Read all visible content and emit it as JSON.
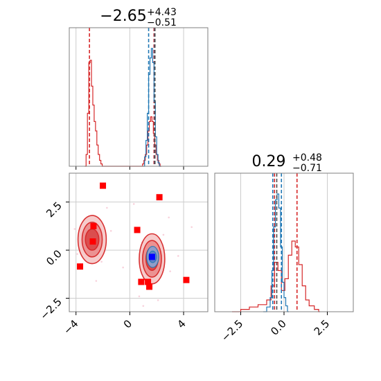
{
  "chart_data": [
    {
      "type": "histogram",
      "panel": "top-left",
      "title": {
        "value": "−2.65",
        "sup": "+4.43",
        "sub": "−0.51"
      },
      "xlim": [
        -4.5,
        5.8
      ],
      "x_ticks": [
        -4,
        0,
        4
      ],
      "grid": true,
      "series": [
        {
          "color": "#d62728",
          "bins": [
            [
              -3.35,
              0.0
            ],
            [
              -3.25,
              0.1
            ],
            [
              -3.15,
              0.45
            ],
            [
              -3.05,
              0.88
            ],
            [
              -2.95,
              0.9
            ],
            [
              -2.85,
              0.68
            ],
            [
              -2.75,
              0.52
            ],
            [
              -2.65,
              0.38
            ],
            [
              -2.55,
              0.3
            ],
            [
              -2.45,
              0.18
            ],
            [
              -2.35,
              0.1
            ],
            [
              -2.25,
              0.05
            ],
            [
              -2.15,
              0.02
            ],
            [
              -2.05,
              0.0
            ],
            [
              0.85,
              0.0
            ],
            [
              0.95,
              0.02
            ],
            [
              1.05,
              0.05
            ],
            [
              1.15,
              0.1
            ],
            [
              1.25,
              0.18
            ],
            [
              1.35,
              0.3
            ],
            [
              1.45,
              0.38
            ],
            [
              1.55,
              0.42
            ],
            [
              1.65,
              0.38
            ],
            [
              1.75,
              0.28
            ],
            [
              1.85,
              0.18
            ],
            [
              1.95,
              0.1
            ],
            [
              2.05,
              0.05
            ],
            [
              2.15,
              0.02
            ],
            [
              2.25,
              0.0
            ]
          ],
          "quantiles": [
            -3.0,
            1.8
          ]
        },
        {
          "color": "#1f77b4",
          "bins": [
            [
              1.0,
              0.0
            ],
            [
              1.1,
              0.08
            ],
            [
              1.2,
              0.22
            ],
            [
              1.3,
              0.45
            ],
            [
              1.4,
              0.78
            ],
            [
              1.5,
              0.92
            ],
            [
              1.6,
              1.0
            ],
            [
              1.7,
              0.88
            ],
            [
              1.8,
              0.55
            ],
            [
              1.9,
              0.25
            ],
            [
              2.0,
              0.1
            ],
            [
              2.1,
              0.03
            ],
            [
              2.2,
              0.0
            ]
          ],
          "quantiles": [
            1.4,
            1.85
          ]
        }
      ],
      "black_lines": [
        1.87
      ]
    },
    {
      "type": "contour-scatter",
      "panel": "bottom-left",
      "xlim": [
        -4.5,
        5.8
      ],
      "ylim": [
        -3.2,
        4.0
      ],
      "x_ticks": [
        -4,
        0,
        4
      ],
      "y_ticks": [
        -2.5,
        0.0,
        2.5
      ],
      "y_tick_labels": [
        "−2.5",
        "0.0",
        "2.5"
      ],
      "x_tick_labels": [
        "−4",
        "0",
        "4"
      ],
      "grid": true,
      "red_contours": [
        {
          "cx": -2.8,
          "cy": 0.55,
          "rx": [
            1.05,
            0.75,
            0.5
          ],
          "ry": [
            1.25,
            0.9,
            0.55
          ]
        },
        {
          "cx": 1.65,
          "cy": -0.45,
          "rx": [
            0.95,
            0.7,
            0.45
          ],
          "ry": [
            1.3,
            0.95,
            0.6
          ]
        }
      ],
      "blue_contour": {
        "cx": 1.7,
        "cy": -0.35,
        "rx": [
          0.45,
          0.28
        ],
        "ry": [
          0.55,
          0.3
        ]
      },
      "blue_marker": [
        1.65,
        -0.35
      ],
      "red_markers": [
        [
          -2.0,
          3.35
        ],
        [
          -2.7,
          1.25
        ],
        [
          -2.75,
          0.45
        ],
        [
          -3.7,
          -0.85
        ],
        [
          0.55,
          1.05
        ],
        [
          2.2,
          2.75
        ],
        [
          0.85,
          -1.65
        ],
        [
          1.35,
          -1.65
        ],
        [
          1.45,
          -1.9
        ],
        [
          4.2,
          -1.55
        ]
      ]
    },
    {
      "type": "histogram",
      "panel": "bottom-right",
      "title": {
        "value": "0.29",
        "sup": "+0.48",
        "sub": "−0.71"
      },
      "xlim": [
        -4.0,
        4.0
      ],
      "x_ticks": [
        -2.5,
        0.0,
        2.5
      ],
      "x_tick_labels": [
        "−2.5",
        "0.0",
        "2.5"
      ],
      "grid": true,
      "series": [
        {
          "color": "#d62728",
          "bins": [
            [
              -3.0,
              0.0
            ],
            [
              -2.5,
              0.02
            ],
            [
              -2.0,
              0.04
            ],
            [
              -1.5,
              0.06
            ],
            [
              -1.0,
              0.1
            ],
            [
              -0.75,
              0.22
            ],
            [
              -0.55,
              0.42
            ],
            [
              -0.35,
              0.35
            ],
            [
              -0.15,
              0.18
            ],
            [
              0.05,
              0.28
            ],
            [
              0.25,
              0.48
            ],
            [
              0.45,
              0.6
            ],
            [
              0.65,
              0.55
            ],
            [
              0.85,
              0.4
            ],
            [
              1.05,
              0.22
            ],
            [
              1.25,
              0.1
            ],
            [
              1.45,
              0.05
            ],
            [
              1.75,
              0.02
            ],
            [
              2.0,
              0.0
            ]
          ],
          "quantiles": [
            -0.55,
            0.75
          ]
        },
        {
          "color": "#1f77b4",
          "bins": [
            [
              -1.2,
              0.0
            ],
            [
              -1.0,
              0.04
            ],
            [
              -0.8,
              0.12
            ],
            [
              -0.7,
              0.35
            ],
            [
              -0.6,
              0.72
            ],
            [
              -0.5,
              0.95
            ],
            [
              -0.4,
              1.0
            ],
            [
              -0.3,
              0.88
            ],
            [
              -0.2,
              0.55
            ],
            [
              -0.1,
              0.25
            ],
            [
              0.0,
              0.12
            ],
            [
              0.1,
              0.05
            ],
            [
              0.2,
              0.0
            ]
          ],
          "quantiles": [
            -0.65,
            -0.15
          ]
        }
      ],
      "black_lines": [
        -0.42
      ]
    }
  ]
}
